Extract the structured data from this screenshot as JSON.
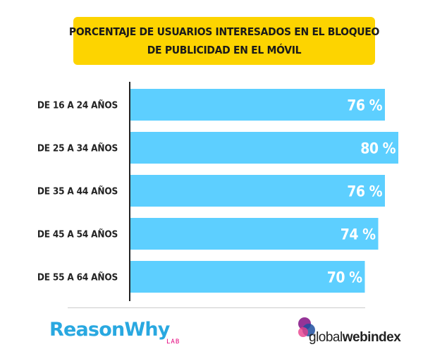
{
  "header": {
    "title_line1": "PORCENTAJE DE USUARIOS INTERESADOS EN EL BLOQUEO",
    "title_line2": "DE PUBLICIDAD EN EL MÓVIL"
  },
  "colors": {
    "title_bg": "#fdd400",
    "bar": "#5dcfff",
    "axis": "#222222",
    "reasonwhy_blue": "#29a8e0",
    "lab_pink": "#e4007c",
    "gwi_purple": "#8a1e8c",
    "gwi_blue": "#1f4fa0",
    "gwi_pink": "#e83e8c"
  },
  "chart_data": {
    "type": "bar",
    "orientation": "horizontal",
    "categories": [
      "DE 16 A 24 AÑOS",
      "DE 25 A 34 AÑOS",
      "DE 35 A 44 AÑOS",
      "DE 45 A 54 AÑOS",
      "DE 55 A 64 AÑOS"
    ],
    "values": [
      76,
      80,
      76,
      74,
      70
    ],
    "value_labels": [
      "76 %",
      "80 %",
      "76 %",
      "74 %",
      "70 %"
    ],
    "unit": "%",
    "xlim": [
      0,
      80
    ],
    "grid": false,
    "legend": "none"
  },
  "footer": {
    "reasonwhy_part1": "Reason",
    "reasonwhy_part2": "Why",
    "reasonwhy_lab": "LAB",
    "gwi_part1": "global",
    "gwi_part2": "webindex",
    "logo_icon": "overlapping-circles-icon"
  }
}
